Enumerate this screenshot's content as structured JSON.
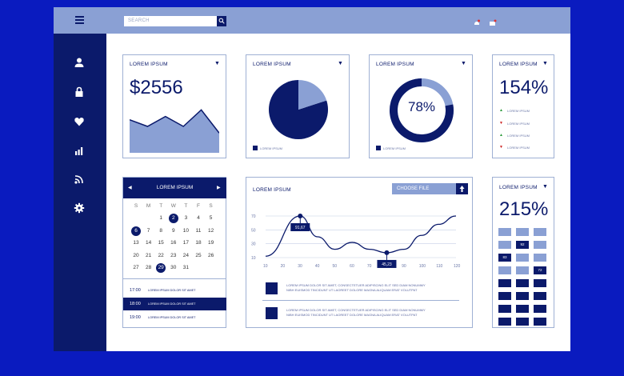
{
  "header": {
    "search_placeholder": "SEARCH"
  },
  "icons": {
    "sidebar": [
      "user-icon",
      "lock-icon",
      "heart-icon",
      "bar-chart-icon",
      "rss-icon",
      "gear-icon"
    ]
  },
  "colors": {
    "primary": "#0b1a6b",
    "accent": "#8aa0d4",
    "background": "#0a1bbf"
  },
  "cards": {
    "revenue": {
      "title": "LOREM IPSUM",
      "value": "$2556"
    },
    "pie": {
      "title": "LOREM IPSUM",
      "legend": "LOREM IPSUM"
    },
    "donut": {
      "title": "LOREM IPSUM",
      "value": "78%",
      "legend": "LOREM IPSUM",
      "progress": 0.78
    },
    "trend": {
      "title": "LOREM IPSUM",
      "value": "154%",
      "items": [
        {
          "dir": "up",
          "label": "LOREM IPSUM"
        },
        {
          "dir": "down",
          "label": "LOREM IPSUM"
        },
        {
          "dir": "up",
          "label": "LOREM IPSUM"
        },
        {
          "dir": "down",
          "label": "LOREM IPSUM"
        }
      ]
    },
    "calendar": {
      "title": "LOREM IPSUM",
      "prev": "◀",
      "next": "▶",
      "days": [
        "S",
        "M",
        "T",
        "W",
        "T",
        "F",
        "S"
      ],
      "weeks": [
        [
          "",
          "",
          "1",
          "2",
          "3",
          "4",
          "5"
        ],
        [
          "6",
          "7",
          "8",
          "9",
          "10",
          "11",
          "12"
        ],
        [
          "13",
          "14",
          "15",
          "16",
          "17",
          "18",
          "19"
        ],
        [
          "20",
          "21",
          "22",
          "23",
          "24",
          "25",
          "26"
        ],
        [
          "27",
          "28",
          "29",
          "30",
          "31",
          "",
          ""
        ]
      ],
      "selected": [
        "2",
        "6",
        "29"
      ]
    },
    "schedule": [
      {
        "time": "17:00",
        "text": "LOREM IPSUM DOLOR SIT AMET"
      },
      {
        "time": "18:00",
        "text": "LOREM IPSUM DOLOR SIT AMET"
      },
      {
        "time": "19:00",
        "text": "LOREM IPSUM DOLOR SIT AMET"
      }
    ],
    "linechart": {
      "title": "LOREM IPSUM",
      "file_button": "CHOOSE FILE"
    },
    "rows": [
      {
        "line1": "LOREM IPSUM DOLOR SIT AMET, CONSECTETUER ADIPISCING ELIT SED DIAM NONUMMY",
        "line2": "NIBH EUISMOD TINCIDUNT UT LAOREET DOLORE MAGNA ALIQUAM ERAT VOLUTPAT"
      },
      {
        "line1": "LOREM IPSUM DOLOR SIT AMET, CONSECTETUER ADIPISCING ELIT SED DIAM NONUMMY",
        "line2": "NIBH EUISMOD TINCIDUNT UT LAOREET DOLORE MAGNA ALIQUAM ERAT VOLUTPAT"
      }
    ],
    "grid": {
      "title": "LOREM IPSUM",
      "value": "215%",
      "labels": {
        "a": "92",
        "b": "83",
        "c": "72"
      }
    }
  },
  "chart_data": [
    {
      "type": "area",
      "x": [
        0,
        1,
        2,
        3,
        4,
        5
      ],
      "values": [
        5,
        4,
        5.5,
        4,
        6.5,
        3
      ]
    },
    {
      "type": "pie",
      "values": [
        80,
        20
      ]
    },
    {
      "type": "line",
      "x": [
        10,
        20,
        30,
        40,
        50,
        60,
        70,
        80,
        90,
        100,
        110,
        120
      ],
      "xlabels": [
        "10",
        "20",
        "30",
        "40",
        "50",
        "60",
        "70",
        "80",
        "90",
        "100",
        "110",
        "120"
      ],
      "ylabels": [
        "10",
        "30",
        "50",
        "70"
      ],
      "points": [
        [
          10,
          12
        ],
        [
          30,
          70
        ],
        [
          40,
          40
        ],
        [
          50,
          22
        ],
        [
          60,
          32
        ],
        [
          70,
          22
        ],
        [
          80,
          17
        ],
        [
          90,
          22
        ],
        [
          100,
          42
        ],
        [
          110,
          58
        ],
        [
          120,
          70
        ]
      ],
      "annotations": [
        {
          "x": 30,
          "y": 70,
          "label": "91,67"
        },
        {
          "x": 80,
          "y": 17,
          "label": "45,23"
        }
      ]
    }
  ]
}
